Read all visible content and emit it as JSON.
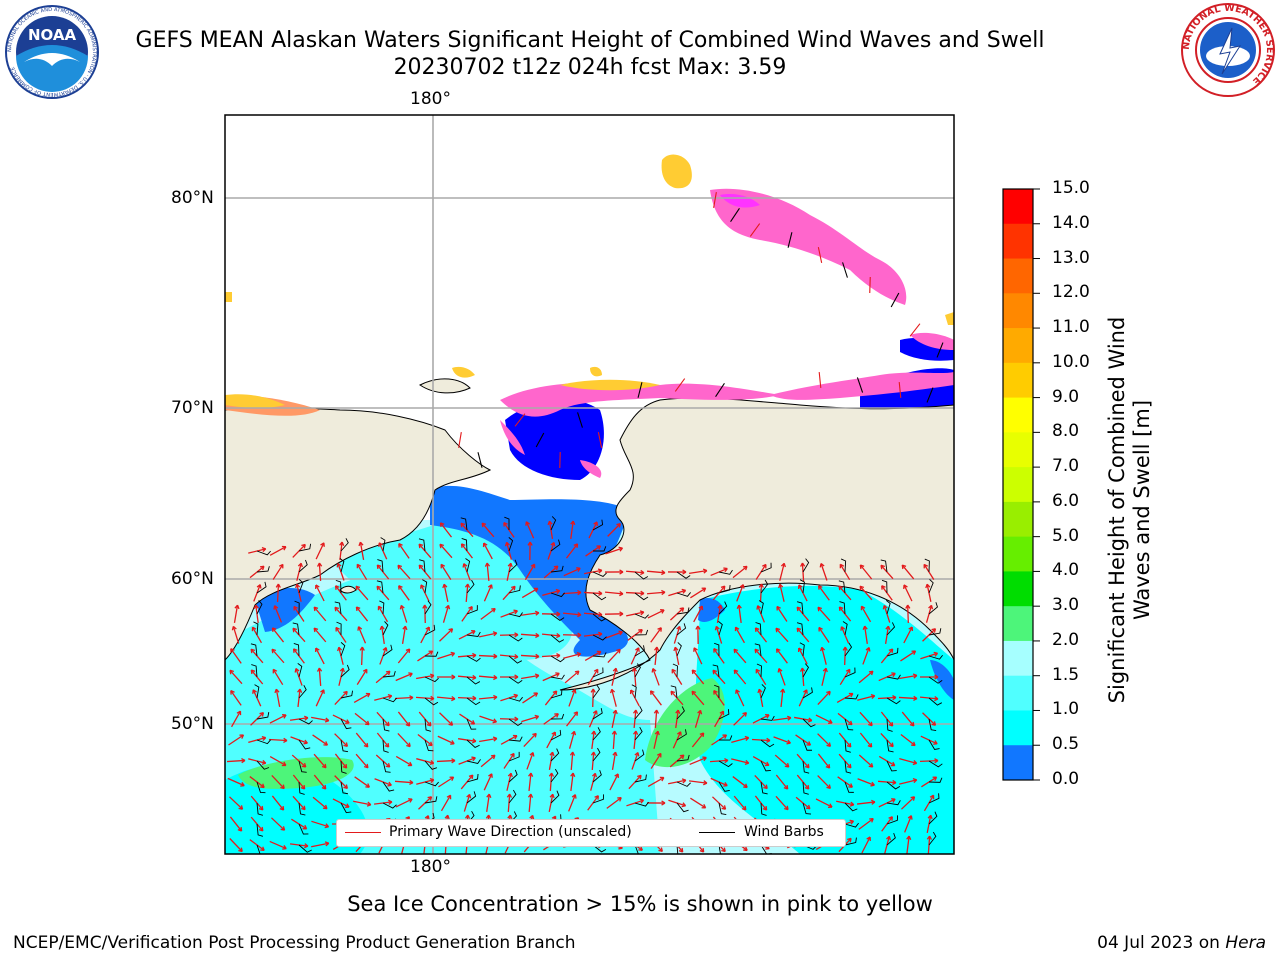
{
  "title_line1": "GEFS MEAN Alaskan Waters Significant Height of Combined Wind Waves and Swell",
  "title_line2": "20230702 t12z 024h fcst   Max: 3.59",
  "logos": {
    "noaa": {
      "name": "noaa-logo",
      "text": "NOAA",
      "ring_text": "NATIONAL OCEANIC AND ATMOSPHERIC ADMINISTRATION · U.S. DEPARTMENT OF COMMERCE"
    },
    "nws": {
      "name": "nws-logo",
      "ring_text": "NATIONAL WEATHER SERVICE"
    }
  },
  "map": {
    "lon_label_top": "180°",
    "lon_label_bottom": "180°",
    "lat_labels": [
      "80°N",
      "70°N",
      "60°N",
      "50°N"
    ],
    "colors": {
      "land": "#efecdc",
      "ocean_default": "#b7fbff",
      "grid": "#aaaaaa",
      "wave_arrow": "#e31a1c",
      "wind_barb": "#000000"
    }
  },
  "legend": {
    "wave_label": "Primary Wave Direction (unscaled)",
    "wind_label": "Wind Barbs"
  },
  "colorbar": {
    "label": "Significant Height of Combined Wind Waves and Swell [m]",
    "ticks": [
      "15.0",
      "14.0",
      "13.0",
      "12.0",
      "11.0",
      "10.0",
      "9.0",
      "8.0",
      "7.0",
      "6.0",
      "5.0",
      "4.0",
      "3.0",
      "2.0",
      "1.5",
      "1.0",
      "0.5",
      "0.0"
    ],
    "colors": [
      "#ff0000",
      "#ff3300",
      "#ff6600",
      "#ff8800",
      "#ffaa00",
      "#ffcc00",
      "#ffff00",
      "#e8ff00",
      "#ccff00",
      "#99ee00",
      "#66ee00",
      "#00dd00",
      "#4df57a",
      "#a6ffff",
      "#50ffff",
      "#00ffff",
      "#1177ff",
      "#0000ff"
    ]
  },
  "footnote": "Sea Ice Concentration > 15% is shown in pink to yellow",
  "footer_left": "NCEP/EMC/Verification Post Processing Product Generation Branch",
  "footer_right_date": "04 Jul 2023 on",
  "footer_right_host": "Hera"
}
